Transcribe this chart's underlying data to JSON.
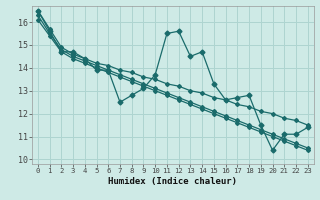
{
  "xlabel": "Humidex (Indice chaleur)",
  "ylabel": "",
  "bg_color": "#ceeae6",
  "grid_color": "#aed4d0",
  "line_color": "#1a6b6b",
  "xlim": [
    -0.5,
    23.5
  ],
  "ylim": [
    9.8,
    16.7
  ],
  "yticks": [
    10,
    11,
    12,
    13,
    14,
    15,
    16
  ],
  "xticks": [
    0,
    1,
    2,
    3,
    4,
    5,
    6,
    7,
    8,
    9,
    10,
    11,
    12,
    13,
    14,
    15,
    16,
    17,
    18,
    19,
    20,
    21,
    22,
    23
  ],
  "series": [
    [
      16.5,
      15.6,
      14.7,
      14.7,
      14.4,
      13.9,
      13.9,
      12.5,
      12.8,
      13.1,
      13.7,
      15.5,
      15.6,
      14.5,
      14.7,
      13.3,
      12.6,
      12.7,
      12.8,
      11.5,
      10.4,
      11.1,
      11.1,
      11.4
    ],
    [
      16.3,
      15.5,
      14.8,
      14.5,
      14.3,
      14.1,
      13.9,
      13.7,
      13.5,
      13.3,
      13.1,
      12.9,
      12.7,
      12.5,
      12.3,
      12.1,
      11.9,
      11.7,
      11.5,
      11.3,
      11.1,
      10.9,
      10.7,
      10.5
    ],
    [
      16.1,
      15.4,
      14.7,
      14.4,
      14.2,
      14.0,
      13.8,
      13.6,
      13.4,
      13.2,
      13.0,
      12.8,
      12.6,
      12.4,
      12.2,
      12.0,
      11.8,
      11.6,
      11.4,
      11.2,
      11.0,
      10.8,
      10.6,
      10.4
    ],
    [
      16.5,
      15.7,
      14.9,
      14.6,
      14.4,
      14.2,
      14.1,
      13.9,
      13.8,
      13.6,
      13.5,
      13.3,
      13.2,
      13.0,
      12.9,
      12.7,
      12.6,
      12.4,
      12.3,
      12.1,
      12.0,
      11.8,
      11.7,
      11.5
    ]
  ]
}
